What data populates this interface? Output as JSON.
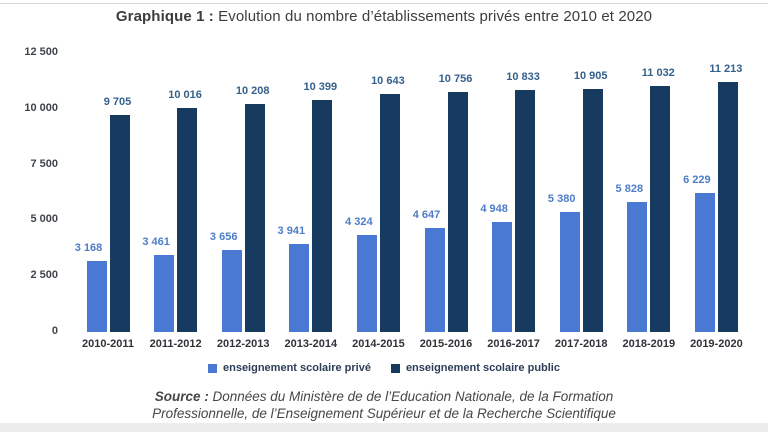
{
  "title": {
    "prefix": "Graphique 1 :",
    "rest": " Evolution du nombre d’établissements privés entre 2010 et 2020"
  },
  "chart_data": {
    "type": "bar",
    "title": "Graphique 1 : Evolution du nombre d’établissements privés entre 2010 et 2020",
    "categories": [
      "2010-2011",
      "2011-2012",
      "2012-2013",
      "2013-2014",
      "2014-2015",
      "2015-2016",
      "2016-2017",
      "2017-2018",
      "2018-2019",
      "2019-2020"
    ],
    "series": [
      {
        "name": "enseignement scolaire privé",
        "color": "#4a79d4",
        "label_color": "#4d7dc9",
        "values": [
          3168,
          3461,
          3656,
          3941,
          4324,
          4647,
          4948,
          5380,
          5828,
          6229
        ]
      },
      {
        "name": "enseignement scolaire public",
        "color": "#173a61",
        "label_color": "#35608d",
        "values": [
          9705,
          10016,
          10208,
          10399,
          10643,
          10756,
          10833,
          10905,
          11032,
          11213
        ]
      }
    ],
    "xlabel": "",
    "ylabel": "",
    "ylim": [
      0,
      12500
    ],
    "yticks": [
      0,
      2500,
      5000,
      7500,
      10000,
      12500
    ],
    "grid": false,
    "legend_position": "bottom"
  },
  "source": {
    "label": "Source :",
    "line1_rest": " Données du Ministère de de l’Education Nationale, de la Formation",
    "line2": "Professionnelle, de l’Enseignement Supérieur et de la Recherche Scientifique"
  }
}
